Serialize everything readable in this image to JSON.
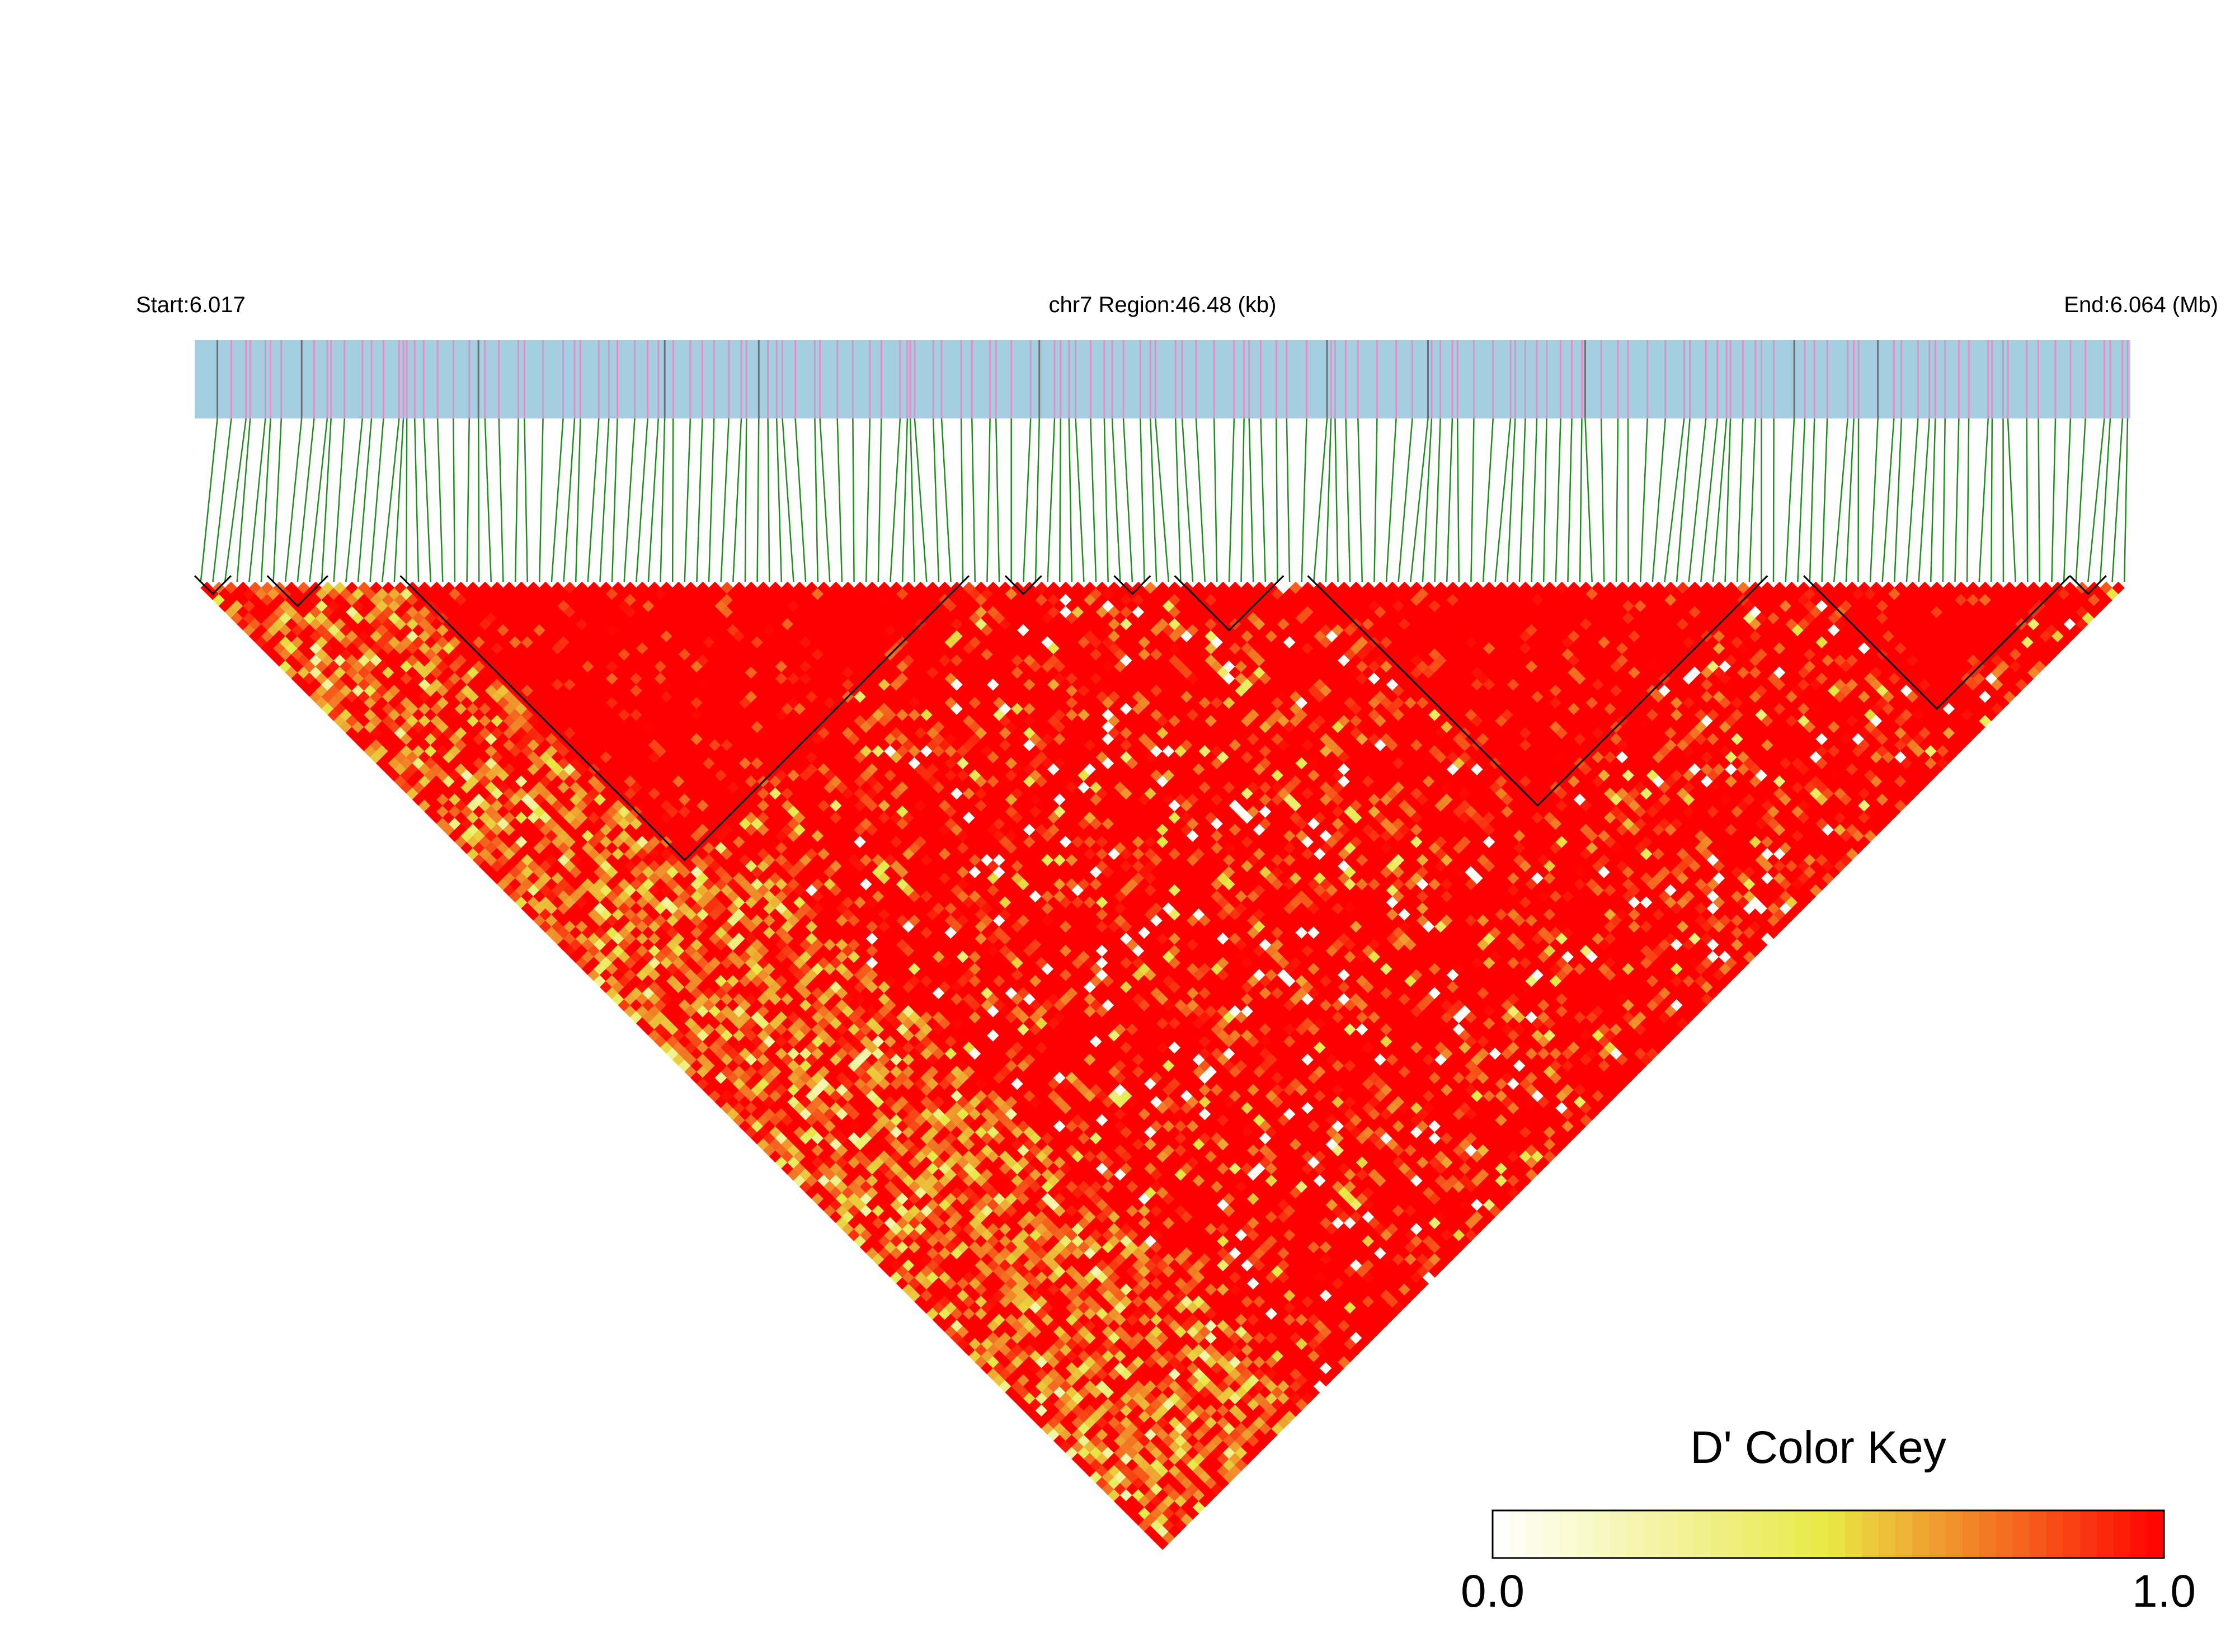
{
  "header": {
    "start_label": "Start:6.017",
    "region_label": "chr7 Region:46.48 (kb)",
    "end_label": "End:6.064 (Mb)"
  },
  "colors": {
    "region_bar": "#a6cee3",
    "snp_tick": "#e08fc8",
    "snp_tick_dark": "#707070",
    "connector": "#228b22",
    "block_outline": "#000000",
    "ld_high": "#ff0000",
    "ld_mid": "#e8e845",
    "ld_low": "#ffffff"
  },
  "chart_data": {
    "type": "heatmap",
    "title": "",
    "xlabel": "",
    "ylabel": "",
    "chromosome": "chr7",
    "start_mb": 6.017,
    "end_mb": 6.064,
    "region_kb": 46.48,
    "snp_count": 160,
    "measure": "D'",
    "haplotype_blocks": [
      {
        "first_snp": 0,
        "last_snp": 2
      },
      {
        "first_snp": 6,
        "last_snp": 10
      },
      {
        "first_snp": 17,
        "last_snp": 63
      },
      {
        "first_snp": 67,
        "last_snp": 69
      },
      {
        "first_snp": 76,
        "last_snp": 78
      },
      {
        "first_snp": 81,
        "last_snp": 89
      },
      {
        "first_snp": 92,
        "last_snp": 129
      },
      {
        "first_snp": 133,
        "last_snp": 154
      },
      {
        "first_snp": 155,
        "last_snp": 157
      }
    ],
    "color_key": {
      "title": "D' Color Key",
      "min_label": "0.0",
      "max_label": "1.0",
      "min": 0.0,
      "max": 1.0
    }
  }
}
